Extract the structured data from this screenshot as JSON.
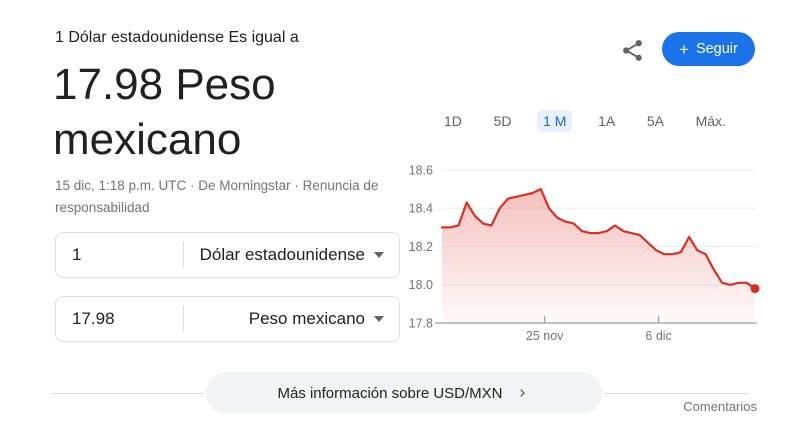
{
  "header": {
    "subtitle": "1 Dólar estadounidense Es igual a",
    "rate_value": "17.98 Peso mexicano",
    "meta": "15 dic, 1:18 p.m. UTC · De Morningstar · Renuncia de responsabilidad",
    "follow": {
      "plus": "+",
      "label": "Seguir"
    }
  },
  "converter": {
    "from_value": "1",
    "from_currency": "Dólar estadounidense",
    "to_value": "17.98",
    "to_currency": "Peso mexicano"
  },
  "chart_data": {
    "type": "area",
    "title": "USD/MXN exchange rate, 1 month",
    "range_tabs": [
      {
        "label": "1D",
        "selected": false
      },
      {
        "label": "5D",
        "selected": false
      },
      {
        "label": "1 M",
        "selected": true
      },
      {
        "label": "1A",
        "selected": false
      },
      {
        "label": "5A",
        "selected": false
      },
      {
        "label": "Máx.",
        "selected": false
      }
    ],
    "values": [
      18.3,
      18.3,
      18.31,
      18.43,
      18.36,
      18.32,
      18.31,
      18.4,
      18.45,
      18.46,
      18.47,
      18.48,
      18.5,
      18.4,
      18.35,
      18.33,
      18.32,
      18.28,
      18.27,
      18.27,
      18.28,
      18.31,
      18.28,
      18.27,
      18.26,
      18.22,
      18.18,
      18.16,
      18.16,
      18.17,
      18.25,
      18.18,
      18.16,
      18.08,
      18.01,
      18.0,
      18.01,
      18.01,
      17.98
    ],
    "ylim": [
      17.8,
      18.6
    ],
    "yticks": [
      "18.6",
      "18.4",
      "18.2",
      "18.0",
      "17.8"
    ],
    "xticks": [
      {
        "label": "25 nov",
        "pos": 0.328
      },
      {
        "label": "6 dic",
        "pos": 0.692
      }
    ],
    "end_dot_value": 17.98,
    "line_color": "#d93025",
    "grid": true,
    "legend": "none"
  },
  "footer": {
    "more_info": "Más información sobre USD/MXN",
    "comments": "Comentarios"
  },
  "colors": {
    "accent_blue": "#1a73e8",
    "tab_selected_text": "#1967d2",
    "tab_highlight_bg": "#e8f0fe",
    "chart_red": "#d93025",
    "text_primary": "#202124",
    "text_secondary": "#70757a",
    "border": "#dadce0",
    "pill_bg": "#f1f3f4"
  }
}
